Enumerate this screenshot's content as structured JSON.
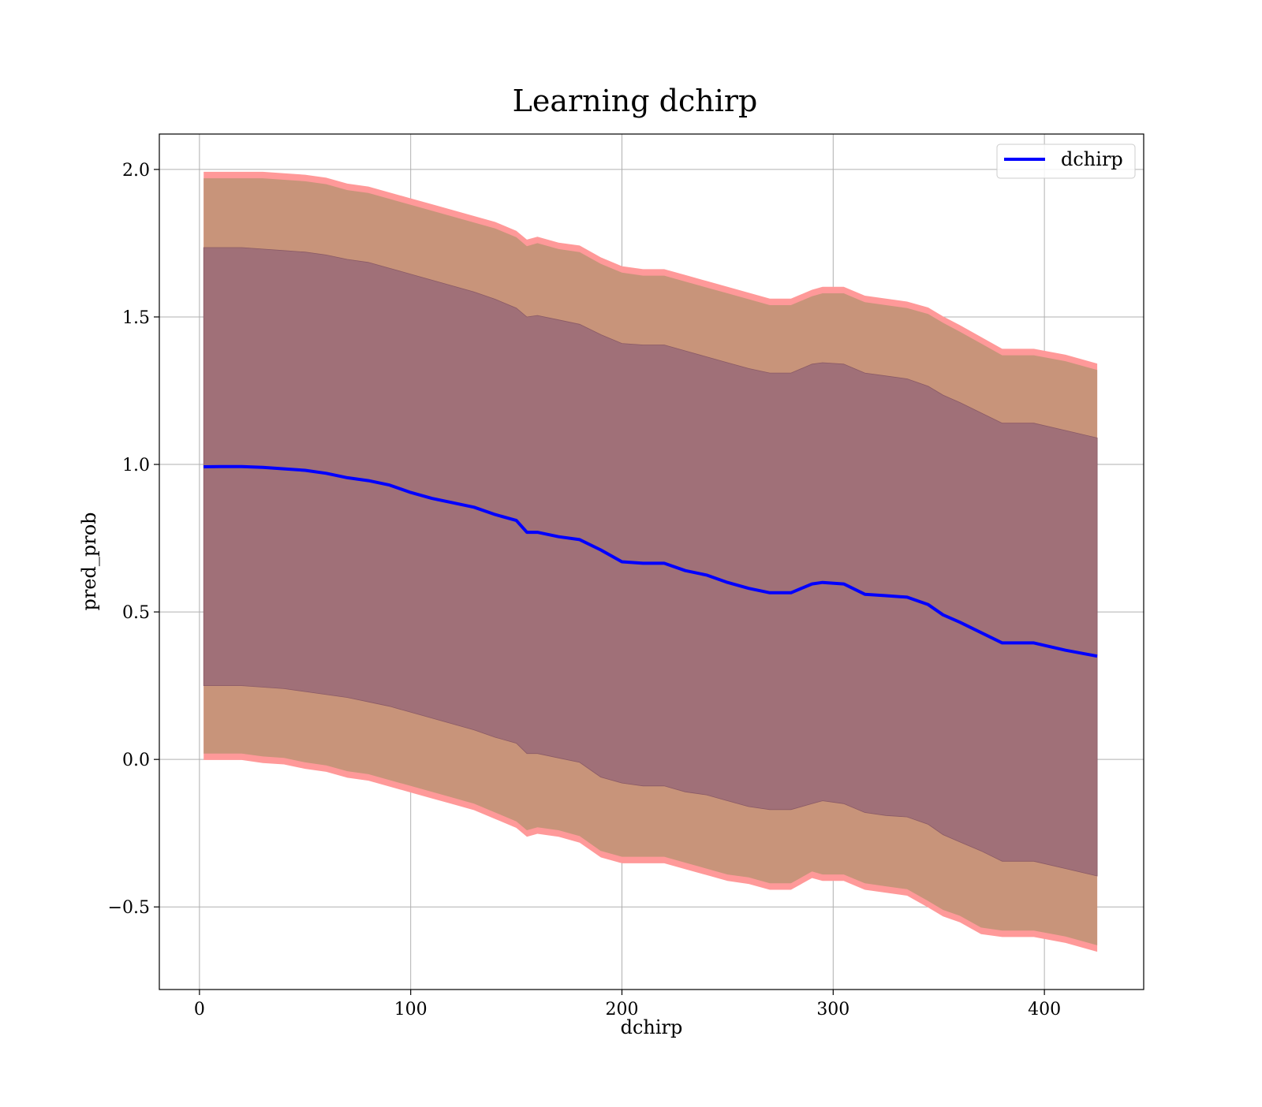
{
  "chart_data": {
    "type": "area",
    "title": "Learning dchirp",
    "xlabel": "dchirp",
    "ylabel": "pred_prob",
    "xlim": [
      -19,
      447
    ],
    "ylim": [
      -0.78,
      2.12
    ],
    "xticks": [
      0,
      100,
      200,
      300,
      400
    ],
    "yticks": [
      -0.5,
      0.0,
      0.5,
      1.0,
      1.5,
      2.0
    ],
    "xtick_labels": [
      "0",
      "100",
      "200",
      "300",
      "400"
    ],
    "ytick_labels": [
      "−0.5",
      "0.0",
      "0.5",
      "1.0",
      "1.5",
      "2.0"
    ],
    "grid": true,
    "legend": {
      "position": "top-right",
      "entries": [
        "dchirp"
      ]
    },
    "colors": {
      "line": "#0000ff",
      "band_outer_edge": "#ff9999",
      "band_2sigma": "#c8947a",
      "band_1sigma": "#a07078"
    },
    "x": [
      2,
      10,
      20,
      30,
      40,
      50,
      60,
      70,
      80,
      90,
      100,
      110,
      120,
      130,
      140,
      150,
      155,
      160,
      170,
      180,
      190,
      200,
      210,
      220,
      230,
      240,
      250,
      260,
      270,
      280,
      290,
      295,
      305,
      315,
      325,
      335,
      345,
      352,
      360,
      370,
      380,
      395,
      410,
      425
    ],
    "series": [
      {
        "name": "dchirp",
        "values": [
          0.992,
          0.993,
          0.993,
          0.99,
          0.985,
          0.98,
          0.97,
          0.955,
          0.945,
          0.93,
          0.905,
          0.885,
          0.87,
          0.855,
          0.83,
          0.81,
          0.77,
          0.77,
          0.755,
          0.745,
          0.71,
          0.67,
          0.665,
          0.665,
          0.64,
          0.625,
          0.6,
          0.58,
          0.565,
          0.565,
          0.595,
          0.6,
          0.595,
          0.56,
          0.555,
          0.55,
          0.525,
          0.49,
          0.465,
          0.43,
          0.395,
          0.395,
          0.37,
          0.35
        ],
        "band_2sigma": {
          "lower": [
            0.02,
            0.02,
            0.02,
            0.01,
            0.005,
            -0.01,
            -0.02,
            -0.04,
            -0.05,
            -0.07,
            -0.09,
            -0.11,
            -0.13,
            -0.15,
            -0.18,
            -0.21,
            -0.24,
            -0.23,
            -0.24,
            -0.26,
            -0.31,
            -0.33,
            -0.33,
            -0.33,
            -0.35,
            -0.37,
            -0.39,
            -0.4,
            -0.42,
            -0.42,
            -0.38,
            -0.39,
            -0.39,
            -0.42,
            -0.43,
            -0.44,
            -0.48,
            -0.51,
            -0.53,
            -0.57,
            -0.58,
            -0.58,
            -0.6,
            -0.63
          ],
          "upper": [
            1.97,
            1.97,
            1.97,
            1.97,
            1.965,
            1.96,
            1.95,
            1.93,
            1.92,
            1.9,
            1.88,
            1.86,
            1.84,
            1.82,
            1.8,
            1.77,
            1.74,
            1.75,
            1.73,
            1.72,
            1.68,
            1.65,
            1.64,
            1.64,
            1.62,
            1.6,
            1.58,
            1.56,
            1.54,
            1.54,
            1.57,
            1.58,
            1.58,
            1.55,
            1.54,
            1.53,
            1.51,
            1.48,
            1.45,
            1.41,
            1.37,
            1.37,
            1.35,
            1.32
          ]
        },
        "band_1sigma": {
          "lower": [
            0.25,
            0.25,
            0.25,
            0.245,
            0.24,
            0.23,
            0.22,
            0.21,
            0.195,
            0.18,
            0.16,
            0.14,
            0.12,
            0.1,
            0.075,
            0.055,
            0.02,
            0.02,
            0.005,
            -0.01,
            -0.06,
            -0.08,
            -0.09,
            -0.09,
            -0.11,
            -0.12,
            -0.14,
            -0.16,
            -0.17,
            -0.17,
            -0.15,
            -0.14,
            -0.15,
            -0.18,
            -0.19,
            -0.195,
            -0.22,
            -0.255,
            -0.28,
            -0.31,
            -0.345,
            -0.345,
            -0.37,
            -0.395
          ],
          "upper": [
            1.735,
            1.735,
            1.735,
            1.73,
            1.725,
            1.72,
            1.71,
            1.695,
            1.685,
            1.665,
            1.645,
            1.625,
            1.605,
            1.585,
            1.56,
            1.53,
            1.5,
            1.505,
            1.49,
            1.475,
            1.44,
            1.41,
            1.405,
            1.405,
            1.385,
            1.365,
            1.345,
            1.325,
            1.31,
            1.31,
            1.34,
            1.345,
            1.34,
            1.31,
            1.3,
            1.29,
            1.265,
            1.235,
            1.21,
            1.175,
            1.14,
            1.14,
            1.115,
            1.09
          ]
        }
      }
    ]
  }
}
